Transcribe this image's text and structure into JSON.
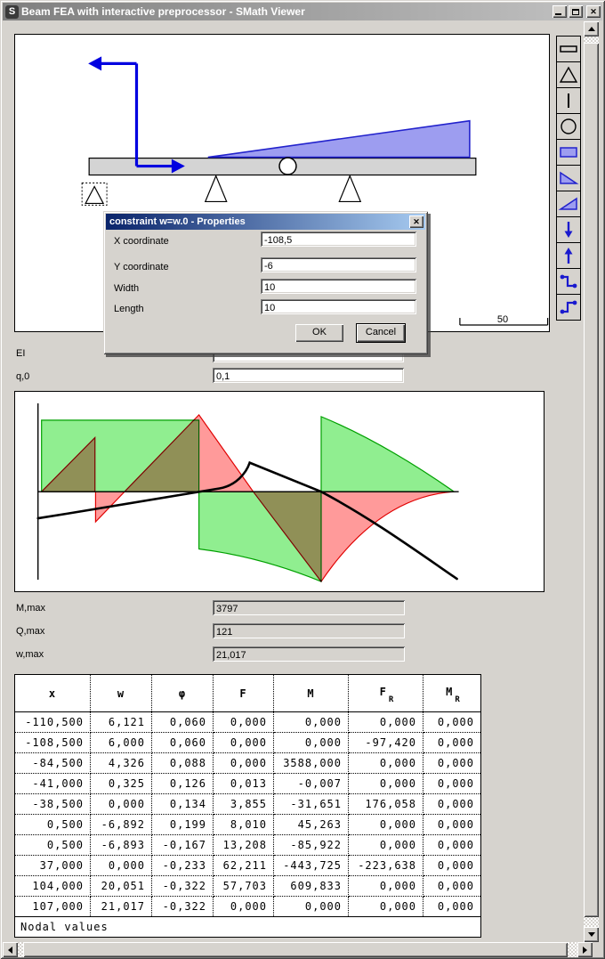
{
  "window": {
    "title": "Beam FEA with interactive preprocessor - SMath Viewer",
    "icon_letter": "S",
    "close_glyph": "✕"
  },
  "canvas": {
    "scale_label": "50"
  },
  "toolbar": {
    "items": [
      "beam-icon",
      "support-triangle-icon",
      "vertical-line-icon",
      "hinge-circle-icon",
      "uniform-load-icon",
      "triangular-load-decreasing-icon",
      "triangular-load-increasing-icon",
      "force-down-icon",
      "force-up-icon",
      "moment-step-down-icon",
      "moment-step-up-icon"
    ]
  },
  "dialog": {
    "title": "constraint w=w.0 - Properties",
    "fields": [
      {
        "label": "X coordinate",
        "value": "-108,5"
      },
      {
        "label": "Y coordinate",
        "value": "-6"
      },
      {
        "label": "Width",
        "value": "10"
      },
      {
        "label": "Length",
        "value": "10"
      }
    ],
    "ok_label": "OK",
    "cancel_label": "Cancel"
  },
  "params": {
    "ei_label": "EI",
    "ei_value": "",
    "q0_label": "q,0",
    "q0_value": "0,1"
  },
  "results": {
    "m_label": "M,max",
    "m_value": "3797",
    "q_label": "Q,max",
    "q_value": "121",
    "w_label": "w,max",
    "w_value": "21,017"
  },
  "table": {
    "headers": [
      {
        "t": "x"
      },
      {
        "t": "w"
      },
      {
        "t": "φ"
      },
      {
        "t": "F"
      },
      {
        "t": "M"
      },
      {
        "t": "F",
        "sub": "R"
      },
      {
        "t": "M",
        "sub": "R"
      }
    ],
    "rows": [
      [
        "-110,500",
        "6,121",
        "0,060",
        "0,000",
        "0,000",
        "0,000",
        "0,000"
      ],
      [
        "-108,500",
        "6,000",
        "0,060",
        "0,000",
        "0,000",
        "-97,420",
        "0,000"
      ],
      [
        "-84,500",
        "4,326",
        "0,088",
        "0,000",
        "3588,000",
        "0,000",
        "0,000"
      ],
      [
        "-41,000",
        "0,325",
        "0,126",
        "0,013",
        "-0,007",
        "0,000",
        "0,000"
      ],
      [
        "-38,500",
        "0,000",
        "0,134",
        "3,855",
        "-31,651",
        "176,058",
        "0,000"
      ],
      [
        "0,500",
        "-6,892",
        "0,199",
        "8,010",
        "45,263",
        "0,000",
        "0,000"
      ],
      [
        "0,500",
        "-6,893",
        "-0,167",
        "13,208",
        "-85,922",
        "0,000",
        "0,000"
      ],
      [
        "37,000",
        "0,000",
        "-0,233",
        "62,211",
        "-443,725",
        "-223,638",
        "0,000"
      ],
      [
        "104,000",
        "20,051",
        "-0,322",
        "57,703",
        "609,833",
        "0,000",
        "0,000"
      ],
      [
        "107,000",
        "21,017",
        "-0,322",
        "0,000",
        "0,000",
        "0,000",
        "0,000"
      ]
    ],
    "footer": "Nodal values"
  },
  "chart_data": {
    "type": "area",
    "description": "Beam diagrams: bending moment (green, filled), shear force (red, filled, overlaps render olive), deflection curve (black line); horizontal zero axis and left vertical axis, no tick labels",
    "series": [
      {
        "name": "M (bending moment)",
        "color": "#90ee90",
        "stroke": "#00a000",
        "style": "filled-area"
      },
      {
        "name": "Q (shear force)",
        "color": "#ff9a9a",
        "stroke": "#e00000",
        "style": "filled-area"
      },
      {
        "name": "w (deflection)",
        "color": "#000000",
        "style": "line"
      }
    ],
    "legend_visible": false,
    "gridlines": false,
    "extremes_shown_in_fields": {
      "M,max": "3797",
      "Q,max": "121",
      "w,max": "21,017"
    }
  },
  "colors": {
    "chrome": "#d6d3ce",
    "dialog_title_start": "#0a246a",
    "dialog_title_end": "#a6caf0",
    "inactive_title_start": "#7f7f7f",
    "inactive_title_end": "#c2c2c2",
    "beam_fill": "#d4d4d4",
    "load_fill": "#9d9df0",
    "load_stroke": "#2222cc",
    "moment_arrow": "#0000e0"
  }
}
